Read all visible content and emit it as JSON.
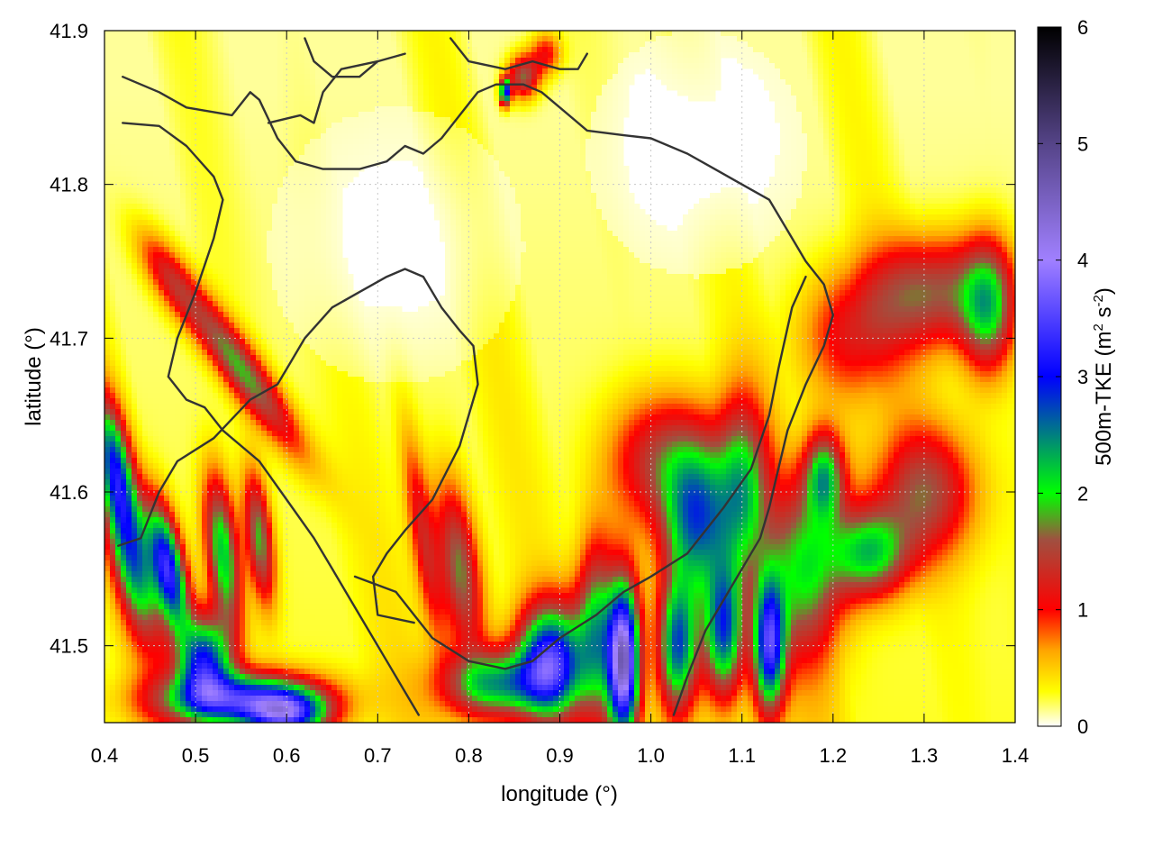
{
  "chart_data": {
    "type": "heatmap",
    "title": "",
    "xlabel": "longitude (°)",
    "ylabel": "latitude (°)",
    "xlim": [
      0.4,
      1.4
    ],
    "ylim": [
      41.45,
      41.9
    ],
    "x_ticks": [
      "0.4",
      "0.5",
      "0.6",
      "0.7",
      "0.8",
      "0.9",
      "1.0",
      "1.1",
      "1.2",
      "1.3",
      "1.4"
    ],
    "y_ticks": [
      "41.5",
      "41.6",
      "41.7",
      "41.8",
      "41.9"
    ],
    "grid": true,
    "colorbar": {
      "label_main": "500m-TKE (m",
      "label_sup1": "2",
      "label_mid": " s",
      "label_sup2": "-2",
      "label_end": ")",
      "range": [
        0,
        6
      ],
      "ticks": [
        "0",
        "1",
        "2",
        "3",
        "4",
        "5",
        "6"
      ],
      "stops": [
        {
          "v": 0.0,
          "c": "#ffffff"
        },
        {
          "v": 0.3,
          "c": "#ffff00"
        },
        {
          "v": 0.65,
          "c": "#ffa500"
        },
        {
          "v": 1.0,
          "c": "#ff0000"
        },
        {
          "v": 1.6,
          "c": "#a05040"
        },
        {
          "v": 2.0,
          "c": "#00ff00"
        },
        {
          "v": 3.0,
          "c": "#0000ff"
        },
        {
          "v": 4.0,
          "c": "#a080ff"
        },
        {
          "v": 5.0,
          "c": "#554488"
        },
        {
          "v": 6.0,
          "c": "#000000"
        }
      ]
    },
    "tke_sources": [
      {
        "lon": 0.55,
        "lat": 41.68,
        "amp": 1.6,
        "sx": 0.012,
        "sy": 0.06,
        "angle": -0.9
      },
      {
        "lon": 0.47,
        "lat": 41.74,
        "amp": 0.8,
        "sx": 0.012,
        "sy": 0.03,
        "angle": -0.9
      },
      {
        "lon": 0.43,
        "lat": 41.56,
        "amp": 2.2,
        "sx": 0.015,
        "sy": 0.04,
        "angle": -0.35
      },
      {
        "lon": 0.47,
        "lat": 41.55,
        "amp": 3.0,
        "sx": 0.012,
        "sy": 0.03,
        "angle": -0.35
      },
      {
        "lon": 0.51,
        "lat": 41.49,
        "amp": 2.6,
        "sx": 0.02,
        "sy": 0.02,
        "angle": 0
      },
      {
        "lon": 0.41,
        "lat": 41.62,
        "amp": 2.0,
        "sx": 0.012,
        "sy": 0.03,
        "angle": -0.3
      },
      {
        "lon": 0.53,
        "lat": 41.56,
        "amp": 2.0,
        "sx": 0.012,
        "sy": 0.035,
        "angle": -0.2
      },
      {
        "lon": 0.57,
        "lat": 41.57,
        "amp": 1.6,
        "sx": 0.01,
        "sy": 0.03,
        "angle": -0.2
      },
      {
        "lon": 0.55,
        "lat": 41.465,
        "amp": 2.8,
        "sx": 0.06,
        "sy": 0.012,
        "angle": 0
      },
      {
        "lon": 0.6,
        "lat": 41.455,
        "amp": 2.4,
        "sx": 0.03,
        "sy": 0.01,
        "angle": 0
      },
      {
        "lon": 0.79,
        "lat": 41.55,
        "amp": 1.5,
        "sx": 0.015,
        "sy": 0.04,
        "angle": -0.25
      },
      {
        "lon": 0.75,
        "lat": 41.57,
        "amp": 1.0,
        "sx": 0.01,
        "sy": 0.05,
        "angle": -0.25
      },
      {
        "lon": 0.89,
        "lat": 41.49,
        "amp": 3.0,
        "sx": 0.025,
        "sy": 0.025,
        "angle": 0
      },
      {
        "lon": 0.83,
        "lat": 41.475,
        "amp": 2.0,
        "sx": 0.04,
        "sy": 0.015,
        "angle": 0
      },
      {
        "lon": 0.97,
        "lat": 41.49,
        "amp": 4.2,
        "sx": 0.012,
        "sy": 0.035,
        "angle": 0
      },
      {
        "lon": 0.94,
        "lat": 41.51,
        "amp": 1.8,
        "sx": 0.015,
        "sy": 0.04,
        "angle": 0
      },
      {
        "lon": 1.03,
        "lat": 41.5,
        "amp": 2.4,
        "sx": 0.015,
        "sy": 0.03,
        "angle": 0
      },
      {
        "lon": 1.05,
        "lat": 41.58,
        "amp": 2.2,
        "sx": 0.025,
        "sy": 0.035,
        "angle": 0
      },
      {
        "lon": 1.08,
        "lat": 41.51,
        "amp": 2.4,
        "sx": 0.015,
        "sy": 0.03,
        "angle": 0
      },
      {
        "lon": 1.13,
        "lat": 41.5,
        "amp": 3.0,
        "sx": 0.012,
        "sy": 0.03,
        "angle": 0
      },
      {
        "lon": 1.1,
        "lat": 41.6,
        "amp": 1.8,
        "sx": 0.02,
        "sy": 0.04,
        "angle": 0
      },
      {
        "lon": 1.17,
        "lat": 41.55,
        "amp": 1.6,
        "sx": 0.03,
        "sy": 0.04,
        "angle": 0
      },
      {
        "lon": 1.19,
        "lat": 41.61,
        "amp": 1.8,
        "sx": 0.015,
        "sy": 0.02,
        "angle": 0
      },
      {
        "lon": 1.24,
        "lat": 41.56,
        "amp": 1.8,
        "sx": 0.03,
        "sy": 0.02,
        "angle": 0
      },
      {
        "lon": 1.3,
        "lat": 41.6,
        "amp": 1.3,
        "sx": 0.04,
        "sy": 0.03,
        "angle": 0
      },
      {
        "lon": 1.01,
        "lat": 41.62,
        "amp": 1.2,
        "sx": 0.04,
        "sy": 0.03,
        "angle": 0
      },
      {
        "lon": 1.31,
        "lat": 41.73,
        "amp": 1.4,
        "sx": 0.05,
        "sy": 0.025,
        "angle": 0
      },
      {
        "lon": 1.37,
        "lat": 41.72,
        "amp": 1.6,
        "sx": 0.02,
        "sy": 0.03,
        "angle": 0
      },
      {
        "lon": 1.22,
        "lat": 41.7,
        "amp": 0.9,
        "sx": 0.04,
        "sy": 0.03,
        "angle": 0
      },
      {
        "lon": 0.86,
        "lat": 41.87,
        "amp": 1.5,
        "sx": 0.012,
        "sy": 0.01,
        "angle": 0
      },
      {
        "lon": 0.885,
        "lat": 41.885,
        "amp": 0.9,
        "sx": 0.012,
        "sy": 0.01,
        "angle": 0
      },
      {
        "lon": 0.84,
        "lat": 41.86,
        "amp": 3.0,
        "sx": 0.004,
        "sy": 0.006,
        "angle": 0
      }
    ],
    "contours": [
      [
        [
          0.42,
          41.87
        ],
        [
          0.46,
          41.86
        ],
        [
          0.49,
          41.85
        ],
        [
          0.54,
          41.845
        ],
        [
          0.56,
          41.86
        ],
        [
          0.57,
          41.855
        ],
        [
          0.59,
          41.83
        ],
        [
          0.61,
          41.815
        ],
        [
          0.64,
          41.81
        ],
        [
          0.68,
          41.81
        ],
        [
          0.71,
          41.815
        ],
        [
          0.73,
          41.825
        ],
        [
          0.75,
          41.82
        ],
        [
          0.77,
          41.83
        ],
        [
          0.79,
          41.845
        ],
        [
          0.81,
          41.86
        ],
        [
          0.83,
          41.865
        ],
        [
          0.86,
          41.865
        ],
        [
          0.88,
          41.86
        ],
        [
          0.9,
          41.85
        ],
        [
          0.93,
          41.835
        ],
        [
          0.97,
          41.832
        ],
        [
          1.0,
          41.83
        ],
        [
          1.04,
          41.82
        ],
        [
          1.07,
          41.81
        ],
        [
          1.1,
          41.8
        ],
        [
          1.13,
          41.79
        ],
        [
          1.15,
          41.77
        ],
        [
          1.17,
          41.75
        ],
        [
          1.19,
          41.735
        ],
        [
          1.2,
          41.715
        ],
        [
          1.19,
          41.695
        ],
        [
          1.17,
          41.67
        ],
        [
          1.15,
          41.64
        ],
        [
          1.14,
          41.615
        ],
        [
          1.13,
          41.59
        ],
        [
          1.12,
          41.57
        ],
        [
          1.1,
          41.55
        ],
        [
          1.08,
          41.53
        ],
        [
          1.06,
          41.51
        ],
        [
          1.04,
          41.48
        ],
        [
          1.025,
          41.455
        ]
      ],
      [
        [
          0.42,
          41.84
        ],
        [
          0.46,
          41.838
        ],
        [
          0.49,
          41.825
        ],
        [
          0.52,
          41.805
        ],
        [
          0.53,
          41.79
        ],
        [
          0.52,
          41.765
        ],
        [
          0.5,
          41.73
        ],
        [
          0.48,
          41.7
        ],
        [
          0.47,
          41.675
        ],
        [
          0.49,
          41.66
        ],
        [
          0.51,
          41.655
        ],
        [
          0.53,
          41.64
        ],
        [
          0.57,
          41.62
        ],
        [
          0.6,
          41.595
        ],
        [
          0.63,
          41.57
        ],
        [
          0.65,
          41.55
        ],
        [
          0.67,
          41.53
        ],
        [
          0.69,
          41.51
        ],
        [
          0.71,
          41.49
        ],
        [
          0.73,
          41.47
        ],
        [
          0.745,
          41.455
        ]
      ],
      [
        [
          0.675,
          41.545
        ],
        [
          0.72,
          41.535
        ],
        [
          0.74,
          41.52
        ],
        [
          0.76,
          41.505
        ],
        [
          0.8,
          41.49
        ],
        [
          0.84,
          41.485
        ],
        [
          0.87,
          41.49
        ],
        [
          0.9,
          41.505
        ],
        [
          0.94,
          41.52
        ],
        [
          0.97,
          41.535
        ],
        [
          1.0,
          41.545
        ],
        [
          1.04,
          41.56
        ],
        [
          1.08,
          41.59
        ],
        [
          1.11,
          41.615
        ],
        [
          1.13,
          41.65
        ],
        [
          1.14,
          41.68
        ],
        [
          1.155,
          41.72
        ],
        [
          1.17,
          41.74
        ]
      ],
      [
        [
          0.415,
          41.565
        ],
        [
          0.44,
          41.57
        ],
        [
          0.46,
          41.6
        ],
        [
          0.48,
          41.62
        ],
        [
          0.52,
          41.635
        ],
        [
          0.56,
          41.66
        ],
        [
          0.59,
          41.67
        ],
        [
          0.605,
          41.685
        ],
        [
          0.62,
          41.7
        ],
        [
          0.65,
          41.72
        ],
        [
          0.68,
          41.73
        ],
        [
          0.71,
          41.74
        ],
        [
          0.73,
          41.745
        ],
        [
          0.75,
          41.74
        ],
        [
          0.77,
          41.72
        ],
        [
          0.79,
          41.705
        ],
        [
          0.805,
          41.695
        ],
        [
          0.81,
          41.67
        ],
        [
          0.79,
          41.63
        ],
        [
          0.76,
          41.595
        ],
        [
          0.73,
          41.575
        ],
        [
          0.71,
          41.56
        ],
        [
          0.695,
          41.545
        ],
        [
          0.7,
          41.52
        ],
        [
          0.74,
          41.515
        ]
      ],
      [
        [
          0.58,
          41.84
        ],
        [
          0.615,
          41.845
        ],
        [
          0.63,
          41.84
        ],
        [
          0.64,
          41.86
        ],
        [
          0.66,
          41.875
        ],
        [
          0.7,
          41.88
        ],
        [
          0.73,
          41.885
        ]
      ],
      [
        [
          0.78,
          41.895
        ],
        [
          0.8,
          41.88
        ],
        [
          0.84,
          41.875
        ],
        [
          0.87,
          41.88
        ],
        [
          0.9,
          41.875
        ],
        [
          0.92,
          41.875
        ],
        [
          0.93,
          41.885
        ]
      ],
      [
        [
          0.62,
          41.895
        ],
        [
          0.63,
          41.88
        ],
        [
          0.65,
          41.87
        ],
        [
          0.68,
          41.87
        ],
        [
          0.7,
          41.88
        ]
      ]
    ]
  }
}
